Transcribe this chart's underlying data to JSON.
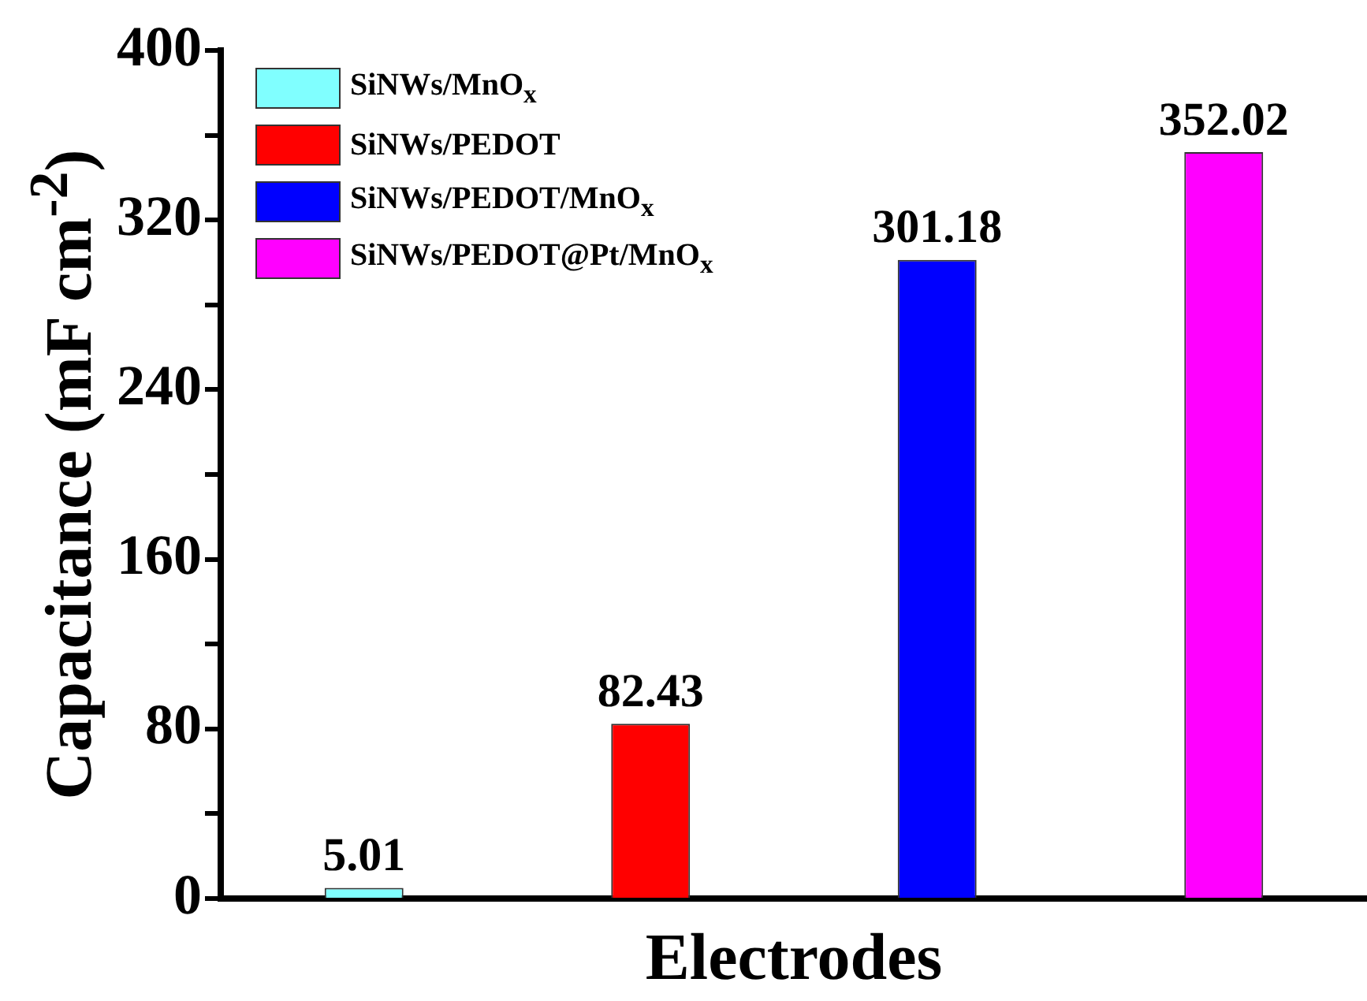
{
  "chart_data": {
    "type": "bar",
    "xlabel": "Electrodes",
    "ylabel": "Capacitance (mF cm$^{-2}$)",
    "categories": [
      null,
      null,
      null,
      null
    ],
    "series": [
      {
        "name": "SiNWs/MnO$_{x}$",
        "color": "#80ffff",
        "values": [
          5.01,
          null,
          null,
          null
        ]
      },
      {
        "name": "SiNWs/PEDOT",
        "color": "#ff0000",
        "values": [
          null,
          82.43,
          null,
          null
        ]
      },
      {
        "name": "SiNWs/PEDOT/MnO$_{x}$",
        "color": "#0000ff",
        "values": [
          null,
          null,
          301.18,
          null
        ]
      },
      {
        "name": "SiNWs/PEDOT@Pt/MnO$_{x}$",
        "color": "#ff00ff",
        "values": [
          null,
          null,
          null,
          352.02
        ]
      }
    ],
    "ylim": [
      0,
      400
    ],
    "yticks": [
      0,
      {
        "value": 40,
        "label": null
      },
      80,
      {
        "value": 120,
        "label": null
      },
      160,
      {
        "value": 200,
        "label": null
      },
      240,
      {
        "value": 280,
        "label": null
      },
      320,
      {
        "value": 360,
        "label": null
      },
      400
    ],
    "data_labels": true,
    "legend": "top left",
    "grid": false
  }
}
